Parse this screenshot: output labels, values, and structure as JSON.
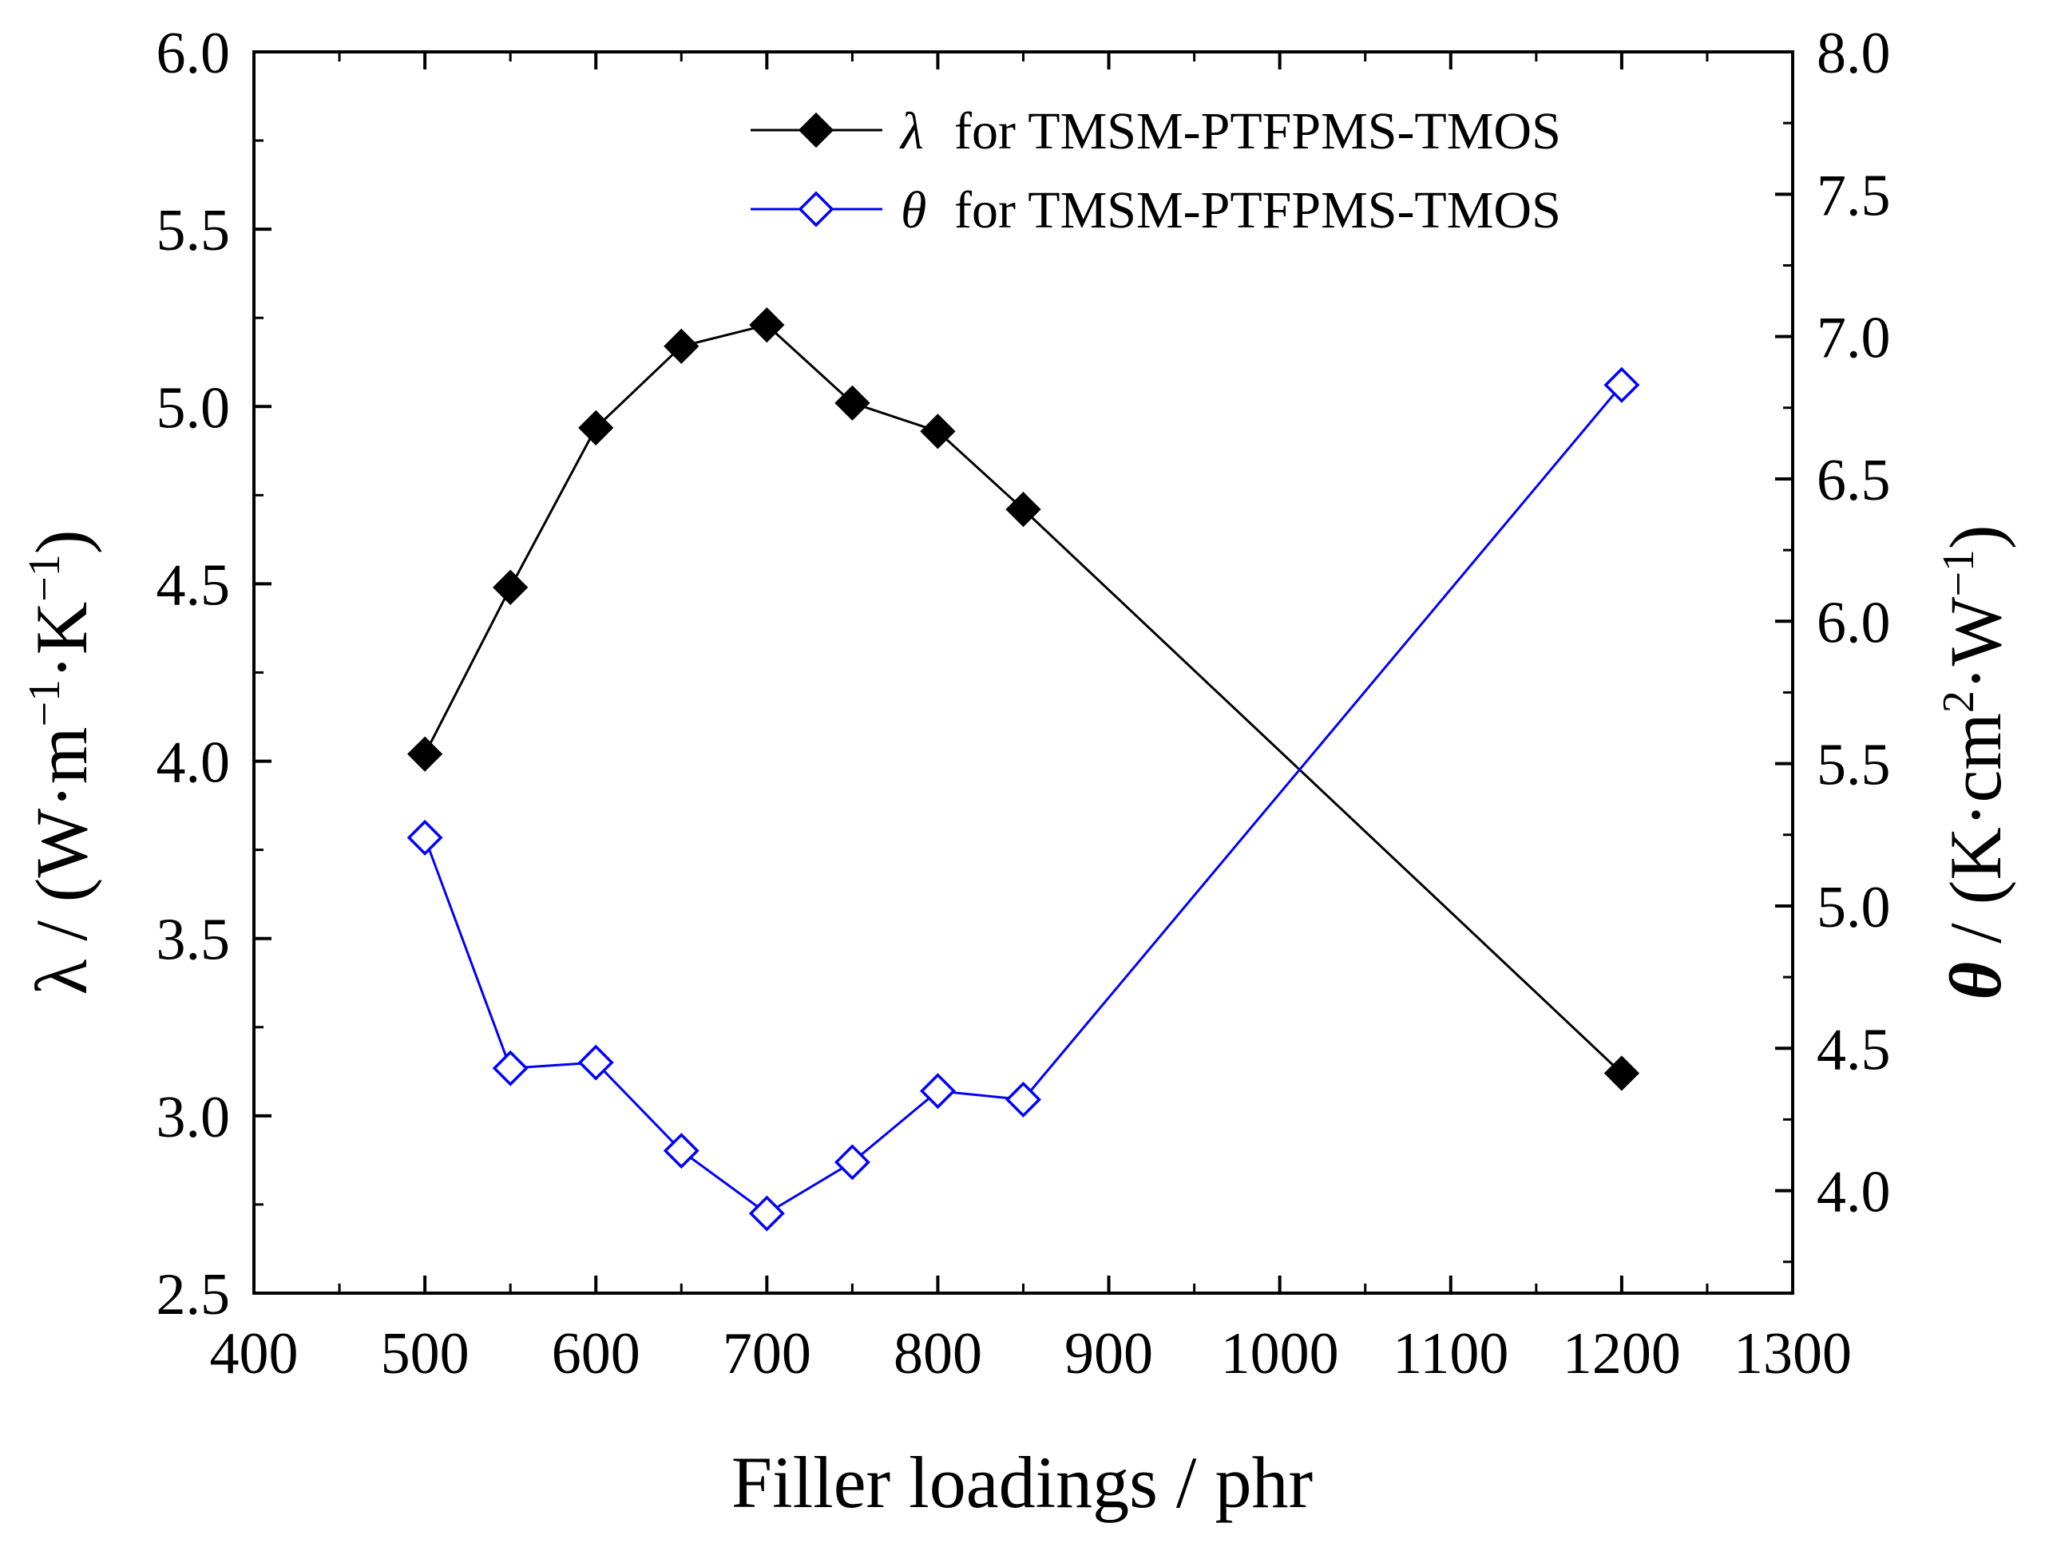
{
  "chart_data": {
    "type": "line",
    "title": "",
    "xlabel": "Filler loadings / phr",
    "ylabel_left": {
      "symbol": "λ",
      "text": "/ (W·m",
      "sup1": "−1",
      "mid": "·K",
      "sup2": "−1",
      "end": ")"
    },
    "ylabel_right": {
      "symbol": "θ",
      "text": "/ (K·cm",
      "sup1": "2",
      "mid": "·W",
      "sup2": "−1",
      "end": ")"
    },
    "xlim": [
      400,
      1300
    ],
    "ylim_left": [
      2.5,
      6.0
    ],
    "ylim_right": [
      3.64,
      8.0
    ],
    "x_ticks": [
      "400",
      "500",
      "600",
      "700",
      "800",
      "900",
      "1000",
      "1100",
      "1200",
      "1300"
    ],
    "y_left_ticks": [
      "2.5",
      "3.0",
      "3.5",
      "4.0",
      "4.5",
      "5.0",
      "5.5",
      "6.0"
    ],
    "y_right_ticks": [
      "4.0",
      "4.5",
      "5.0",
      "5.5",
      "6.0",
      "6.5",
      "7.0",
      "7.5",
      "8.0"
    ],
    "x": [
      500,
      550,
      600,
      650,
      700,
      750,
      800,
      850,
      1200
    ],
    "series": [
      {
        "name": "for TMSM-PTFPMS-TMOS",
        "symbol": "λ",
        "axis": "left",
        "color": "#000000",
        "marker": "filled-diamond",
        "values": [
          4.02,
          4.49,
          4.94,
          5.17,
          5.23,
          5.01,
          4.93,
          4.71,
          3.12
        ]
      },
      {
        "name": "for TMSM-PTFPMS-TMOS",
        "symbol": "θ",
        "axis": "right",
        "color": "#0000ff",
        "marker": "open-diamond",
        "values": [
          5.24,
          4.43,
          4.45,
          4.14,
          3.92,
          4.1,
          4.35,
          4.32,
          6.83
        ]
      }
    ],
    "legend_position": "top-right",
    "grid": false
  }
}
